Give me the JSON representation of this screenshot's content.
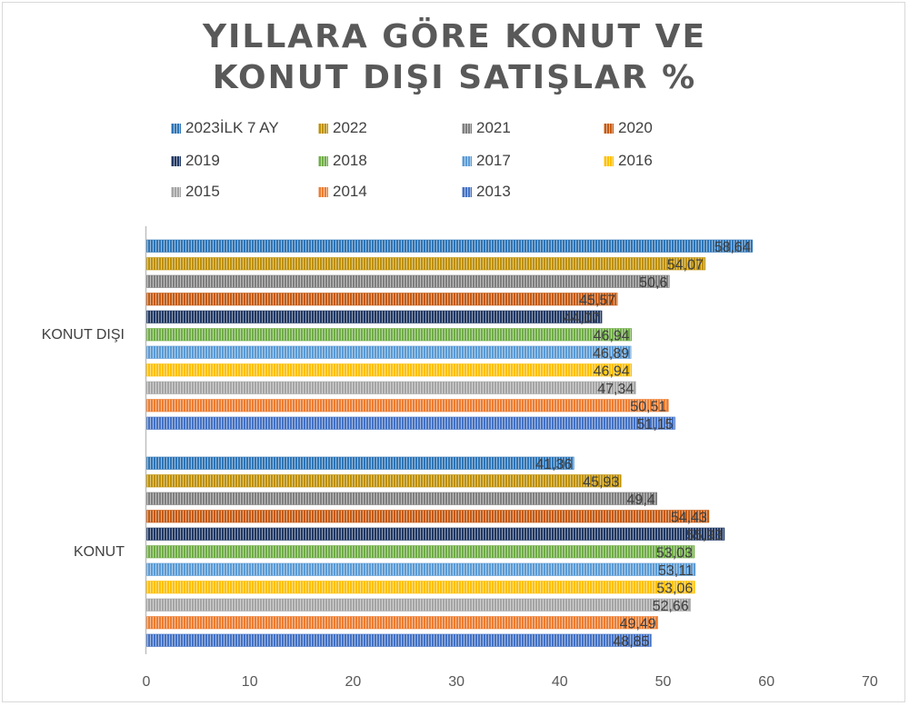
{
  "chart_data": {
    "type": "bar",
    "orientation": "horizontal",
    "title_lines": [
      "YILLARA GÖRE KONUT VE",
      "KONUT DIŞI SATIŞLAR %"
    ],
    "categories": [
      "KONUT DIŞI",
      "KONUT"
    ],
    "xlim": [
      0,
      70
    ],
    "xticks": [
      0,
      10,
      20,
      30,
      40,
      50,
      60,
      70
    ],
    "grid": false,
    "legend_position": "top",
    "series": [
      {
        "name": "2023İLK 7 AY",
        "color": "#2e75b6",
        "values": [
          58.64,
          41.36
        ],
        "labels": [
          "58,64",
          "41,36"
        ]
      },
      {
        "name": "2022",
        "color": "#bf9000",
        "values": [
          54.07,
          45.93
        ],
        "labels": [
          "54,07",
          "45,93"
        ]
      },
      {
        "name": "2021",
        "color": "#7f7f7f",
        "values": [
          50.6,
          49.4
        ],
        "labels": [
          "50,6",
          "49,4"
        ]
      },
      {
        "name": "2020",
        "color": "#c55a11",
        "values": [
          45.57,
          54.43
        ],
        "labels": [
          "45,57",
          "54,43"
        ]
      },
      {
        "name": "2019",
        "color": "#203864",
        "values": [
          44.07,
          55.93
        ],
        "labels": [
          "44,07",
          "55,93"
        ]
      },
      {
        "name": "2018",
        "color": "#70ad47",
        "values": [
          46.94,
          53.03
        ],
        "labels": [
          "46,94",
          "53,03"
        ]
      },
      {
        "name": "2017",
        "color": "#5b9bd5",
        "values": [
          46.89,
          53.11
        ],
        "labels": [
          "46,89",
          "53,11"
        ]
      },
      {
        "name": "2016",
        "color": "#ffc000",
        "values": [
          46.94,
          53.06
        ],
        "labels": [
          "46,94",
          "53,06"
        ]
      },
      {
        "name": "2015",
        "color": "#a5a5a5",
        "values": [
          47.34,
          52.66
        ],
        "labels": [
          "47,34",
          "52,66"
        ]
      },
      {
        "name": "2014",
        "color": "#ed7d31",
        "values": [
          50.51,
          49.49
        ],
        "labels": [
          "50,51",
          "49,49"
        ]
      },
      {
        "name": "2013",
        "color": "#4472c4",
        "values": [
          51.15,
          48.85
        ],
        "labels": [
          "51,15",
          "48,85"
        ]
      }
    ]
  }
}
